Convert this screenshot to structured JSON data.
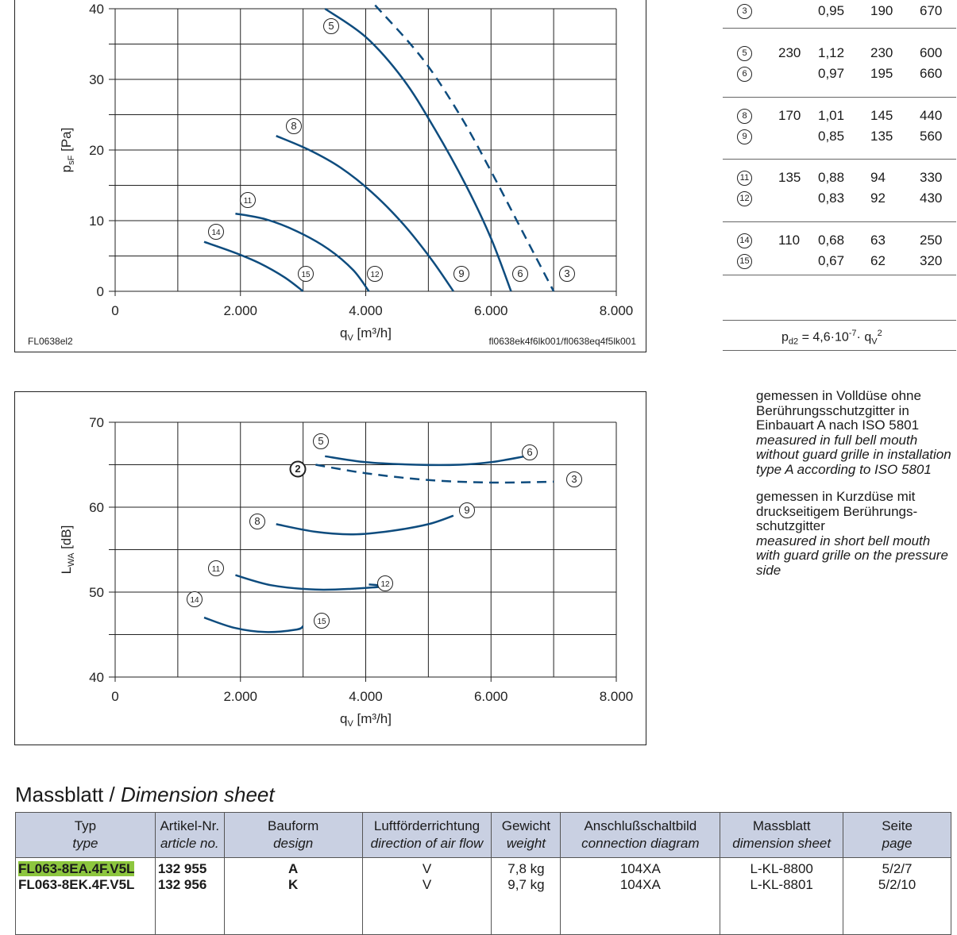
{
  "colors": {
    "curve": "#0e4c7e",
    "grid": "#222222",
    "header_bg": "#c9d0e2",
    "highlight": "#8dc63f"
  },
  "top_chart": {
    "code_left": "FL0638el2",
    "code_right": "fl0638ek4f6lk001/fl0638eq4f5lk001",
    "ylabel_main": "p",
    "ylabel_sub": "sF",
    "ylabel_unit": "[Pa]",
    "xlabel_main": "q",
    "xlabel_sub": "V",
    "xlabel_unit": "[m³/h]",
    "yticks": [
      "0",
      "10",
      "20",
      "30",
      "40"
    ],
    "xticks": [
      "0",
      "2.000",
      "4.000",
      "6.000",
      "8.000"
    ]
  },
  "bottom_chart": {
    "ylabel_main": "L",
    "ylabel_sub": "WA",
    "ylabel_unit": "[dB]",
    "xlabel_main": "q",
    "xlabel_sub": "V",
    "xlabel_unit": "[m³/h]",
    "yticks": [
      "40",
      "50",
      "60",
      "70"
    ],
    "xticks": [
      "0",
      "2.000",
      "4.000",
      "6.000",
      "8.000"
    ]
  },
  "chart_data": [
    {
      "type": "line",
      "xlabel": "qV [m³/h]",
      "ylabel": "psF [Pa]",
      "xlim": [
        0,
        8000
      ],
      "ylim": [
        0,
        40
      ],
      "xticks": [
        0,
        2000,
        4000,
        6000,
        8000
      ],
      "yticks": [
        0,
        10,
        20,
        30,
        40
      ],
      "grid": true,
      "series": [
        {
          "name": "3",
          "style": "dashed",
          "points": [
            [
              4150,
              40.5
            ],
            [
              4900,
              33
            ],
            [
              5500,
              25
            ],
            [
              6000,
              17
            ],
            [
              6500,
              8.5
            ],
            [
              7000,
              0
            ]
          ],
          "start_label": "",
          "end_label": "3"
        },
        {
          "name": "5-6",
          "style": "solid",
          "points": [
            [
              3350,
              40
            ],
            [
              4000,
              36
            ],
            [
              4600,
              30
            ],
            [
              5100,
              23
            ],
            [
              5600,
              15
            ],
            [
              6000,
              7.5
            ],
            [
              6320,
              0
            ]
          ],
          "start_label": "5",
          "end_label": "6"
        },
        {
          "name": "8-9",
          "style": "solid",
          "points": [
            [
              2570,
              22
            ],
            [
              3100,
              20
            ],
            [
              3600,
              17.5
            ],
            [
              4100,
              14
            ],
            [
              4600,
              9.5
            ],
            [
              5050,
              4.5
            ],
            [
              5400,
              0
            ]
          ],
          "start_label": "8",
          "end_label": "9"
        },
        {
          "name": "11-12",
          "style": "solid",
          "points": [
            [
              1920,
              11
            ],
            [
              2400,
              10.2
            ],
            [
              2900,
              8.5
            ],
            [
              3400,
              6
            ],
            [
              3800,
              3
            ],
            [
              4050,
              0
            ]
          ],
          "start_label": "11",
          "end_label": "12"
        },
        {
          "name": "14-15",
          "style": "solid",
          "points": [
            [
              1420,
              7
            ],
            [
              1900,
              5.5
            ],
            [
              2300,
              4
            ],
            [
              2700,
              2
            ],
            [
              3000,
              0
            ]
          ],
          "start_label": "14",
          "end_label": "15"
        }
      ]
    },
    {
      "type": "line",
      "xlabel": "qV [m³/h]",
      "ylabel": "LWA [dB]",
      "xlim": [
        0,
        8000
      ],
      "ylim": [
        40,
        70
      ],
      "xticks": [
        0,
        2000,
        4000,
        6000,
        8000
      ],
      "yticks": [
        40,
        50,
        60,
        70
      ],
      "grid": true,
      "series": [
        {
          "name": "2-3",
          "style": "dashed",
          "points": [
            [
              3200,
              65
            ],
            [
              4000,
              64
            ],
            [
              5000,
              63.2
            ],
            [
              6000,
              62.9
            ],
            [
              7000,
              63
            ]
          ],
          "start_label": "2",
          "end_label": "3"
        },
        {
          "name": "5-6",
          "style": "solid",
          "points": [
            [
              3350,
              66
            ],
            [
              4000,
              65.3
            ],
            [
              4800,
              65
            ],
            [
              5500,
              65
            ],
            [
              6000,
              65.3
            ],
            [
              6550,
              66
            ]
          ],
          "start_label": "5",
          "end_label": "6"
        },
        {
          "name": "8-9",
          "style": "solid",
          "points": [
            [
              2570,
              58
            ],
            [
              3200,
              57.1
            ],
            [
              3800,
              56.8
            ],
            [
              4400,
              57.2
            ],
            [
              5000,
              58
            ],
            [
              5400,
              59
            ]
          ],
          "start_label": "8",
          "end_label": "9"
        },
        {
          "name": "11-12",
          "style": "solid",
          "points": [
            [
              1920,
              52
            ],
            [
              2500,
              50.8
            ],
            [
              3200,
              50.3
            ],
            [
              3800,
              50.4
            ],
            [
              4300,
              50.7
            ],
            [
              4050,
              50.9
            ]
          ],
          "start_label": "11",
          "end_label": "12"
        },
        {
          "name": "14-15",
          "style": "solid",
          "points": [
            [
              1420,
              47
            ],
            [
              1900,
              45.8
            ],
            [
              2400,
              45.3
            ],
            [
              2900,
              45.6
            ],
            [
              3000,
              46
            ]
          ],
          "start_label": "14",
          "end_label": "15"
        }
      ]
    }
  ],
  "perf_table": {
    "rows": [
      {
        "id": "3",
        "col1": "",
        "col2": "0,95",
        "col3": "190",
        "col4": "670"
      },
      {
        "id": "5",
        "col1": "230",
        "col2": "1,12",
        "col3": "230",
        "col4": "600"
      },
      {
        "id": "6",
        "col1": "",
        "col2": "0,97",
        "col3": "195",
        "col4": "660"
      },
      {
        "id": "8",
        "col1": "170",
        "col2": "1,01",
        "col3": "145",
        "col4": "440"
      },
      {
        "id": "9",
        "col1": "",
        "col2": "0,85",
        "col3": "135",
        "col4": "560"
      },
      {
        "id": "11",
        "col1": "135",
        "col2": "0,88",
        "col3": "94",
        "col4": "330"
      },
      {
        "id": "12",
        "col1": "",
        "col2": "0,83",
        "col3": "92",
        "col4": "430"
      },
      {
        "id": "14",
        "col1": "110",
        "col2": "0,68",
        "col3": "63",
        "col4": "250"
      },
      {
        "id": "15",
        "col1": "",
        "col2": "0,67",
        "col3": "62",
        "col4": "320"
      }
    ],
    "formula_prefix": "p",
    "formula_sub": "d2",
    "formula_eq": " = 4,6·10",
    "formula_exp": "-7",
    "formula_mid": "· q",
    "formula_sub2": "V",
    "formula_exp2": "2"
  },
  "legend": {
    "dashed": {
      "de": "gemessen in Volldüse ohne Berührungsschutzgitter in Einbauart A nach ISO 5801",
      "en": "measured in full bell mouth without guard grille in installation type A according to ISO 5801"
    },
    "solid": {
      "de": "gemessen in Kurzdüse mit druckseitigem Berührungs-schutzgitter",
      "en": "measured in short bell mouth with guard grille on the pressure side"
    }
  },
  "dimension": {
    "title_de": "Massblatt / ",
    "title_en": "Dimension sheet",
    "headers": [
      {
        "de": "Typ",
        "en": "type"
      },
      {
        "de": "Artikel-Nr.",
        "en": "article no."
      },
      {
        "de": "Bauform",
        "en": "design"
      },
      {
        "de": "Luftförderrichtung",
        "en": "direction of air flow"
      },
      {
        "de": "Gewicht",
        "en": "weight"
      },
      {
        "de": "Anschlußschaltbild",
        "en": "connection diagram"
      },
      {
        "de": "Massblatt",
        "en": "dimension sheet"
      },
      {
        "de": "Seite",
        "en": "page"
      }
    ],
    "rows": [
      {
        "type": "FL063-8EA.4F.V5L",
        "article": "132 955",
        "design": "A",
        "flow": "V",
        "weight": "7,8 kg",
        "diagram": "104XA",
        "sheet": "L-KL-8800",
        "page": "5/2/7"
      },
      {
        "type": "FL063-8EK.4F.V5L",
        "article": "132 956",
        "design": "K",
        "flow": "V",
        "weight": "9,7 kg",
        "diagram": "104XA",
        "sheet": "L-KL-8801",
        "page": "5/2/10"
      }
    ]
  }
}
